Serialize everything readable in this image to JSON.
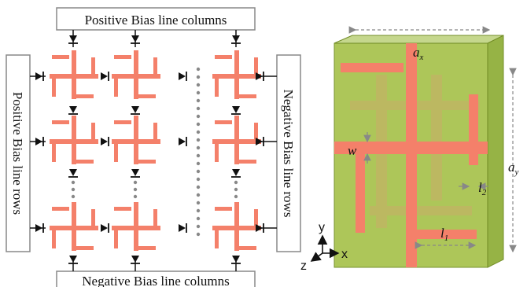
{
  "left_panel": {
    "top_label": "Positive Bias line columns",
    "bottom_label": "Negative Bias line columns",
    "left_label": "Positive Bias line rows",
    "right_label": "Negative Bias line rows"
  },
  "right_panel": {
    "ax_base": "a",
    "ax_sub": "x",
    "ay_base": "a",
    "ay_sub": "y",
    "w_label": "w",
    "l1_base": "l",
    "l1_sub": "1",
    "l2_base": "l",
    "l2_sub": "2",
    "axis_x": "x",
    "axis_y": "y",
    "axis_z": "z"
  },
  "colors": {
    "strip": "#f4806a",
    "substrate": "#a6c24a",
    "substrate_edge": "#6f8a22"
  }
}
